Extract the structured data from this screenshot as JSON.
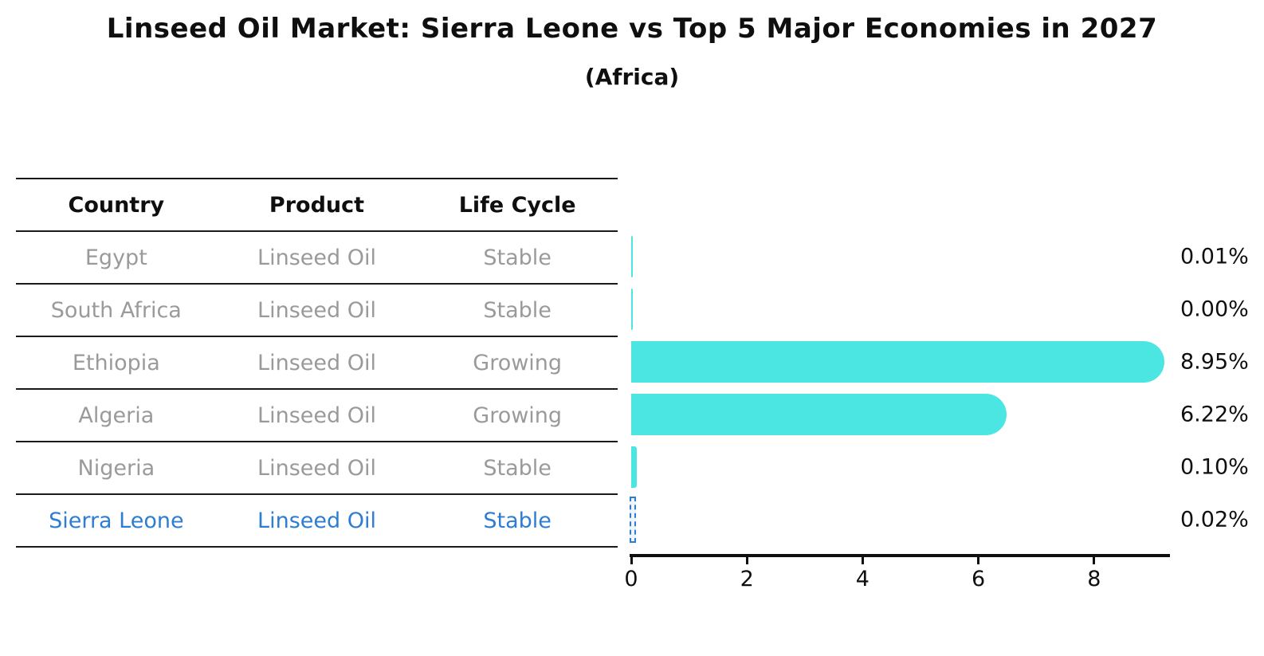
{
  "title": "Linseed Oil Market: Sierra Leone vs Top 5 Major Economies in 2027",
  "subtitle": "(Africa)",
  "table": {
    "headers": [
      "Country",
      "Product",
      "Life Cycle"
    ],
    "rows": [
      {
        "country": "Egypt",
        "product": "Linseed Oil",
        "life_cycle": "Stable",
        "highlight": false
      },
      {
        "country": "South Africa",
        "product": "Linseed Oil",
        "life_cycle": "Stable",
        "highlight": false
      },
      {
        "country": "Ethiopia",
        "product": "Linseed Oil",
        "life_cycle": "Growing",
        "highlight": false
      },
      {
        "country": "Algeria",
        "product": "Linseed Oil",
        "life_cycle": "Growing",
        "highlight": false
      },
      {
        "country": "Nigeria",
        "product": "Linseed Oil",
        "life_cycle": "Stable",
        "highlight": false
      },
      {
        "country": "Sierra Leone",
        "product": "Linseed Oil",
        "life_cycle": "Stable",
        "highlight": true
      }
    ]
  },
  "chart_data": {
    "type": "bar",
    "orientation": "horizontal",
    "categories": [
      "Egypt",
      "South Africa",
      "Ethiopia",
      "Algeria",
      "Nigeria",
      "Sierra Leone"
    ],
    "values": [
      0.01,
      0.0,
      8.95,
      6.22,
      0.1,
      0.02
    ],
    "value_labels": [
      "0.01%",
      "0.00%",
      "8.95%",
      "6.22%",
      "0.10%",
      "0.02%"
    ],
    "highlight_index": 5,
    "xticks": [
      "0",
      "2",
      "4",
      "6",
      "8"
    ],
    "xlim": [
      0,
      9.3
    ],
    "grid": false,
    "legend": false,
    "bar_color": "#4be5e2",
    "highlight_color": "#2d7dd2",
    "label_color": "#0f0f0f",
    "muted_text_color": "#9a9a9a"
  }
}
